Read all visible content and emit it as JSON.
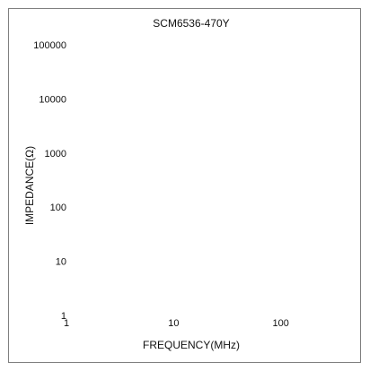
{
  "chart_data": {
    "type": "line",
    "title": "SCM6536-470Y",
    "xlabel": "FREQUENCY(MHz)",
    "ylabel": "IMPEDANCE(Ω)",
    "x_scale": "log",
    "y_scale": "log",
    "xlim": [
      1,
      1000
    ],
    "ylim": [
      1,
      100000
    ],
    "x_ticks": [
      "1",
      "10",
      "100"
    ],
    "y_ticks": [
      "1",
      "10",
      "100",
      "1000",
      "10000",
      "100000"
    ],
    "series": [],
    "grid": false
  }
}
